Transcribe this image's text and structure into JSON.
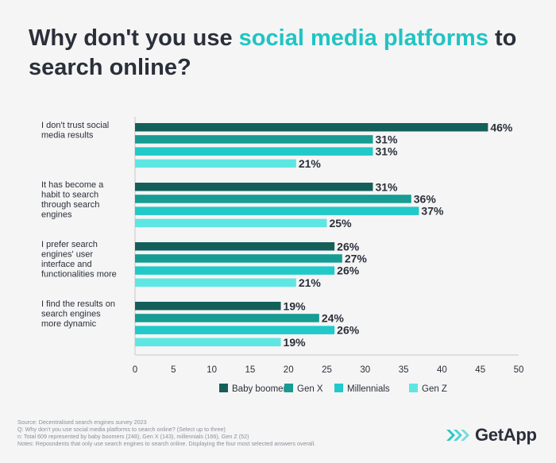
{
  "title": {
    "part1": "Why don't you use ",
    "highlight": "social media platforms",
    "part2": " to search online?"
  },
  "colors": {
    "title_highlight": "#20c4c4",
    "series": [
      "#145f5a",
      "#169c92",
      "#21c9c9",
      "#5ee6e3"
    ]
  },
  "chart_data": {
    "type": "bar",
    "orientation": "horizontal",
    "categories": [
      [
        "I don't trust social",
        "media results"
      ],
      [
        "It has become a",
        "habit to search",
        "through search",
        "engines"
      ],
      [
        "I prefer search",
        "engines' user",
        "interface and",
        "functionalities more"
      ],
      [
        "I find the results on",
        "search engines",
        "more dynamic"
      ]
    ],
    "series": [
      {
        "name": "Baby boomers",
        "values": [
          46,
          31,
          26,
          19
        ]
      },
      {
        "name": "Gen X",
        "values": [
          31,
          36,
          27,
          24
        ]
      },
      {
        "name": "Millennials",
        "values": [
          31,
          37,
          26,
          26
        ]
      },
      {
        "name": "Gen Z",
        "values": [
          21,
          25,
          21,
          19
        ]
      }
    ],
    "value_suffix": "%",
    "xlim": [
      0,
      50
    ],
    "xticks": [
      0,
      5,
      10,
      15,
      20,
      25,
      30,
      35,
      40,
      45,
      50
    ],
    "grid": false,
    "legend_position": "bottom"
  },
  "footnotes": [
    "Source: Decentralised search engines survey 2023",
    "Q: Why don't you use social media platforms to search online? (Select up to three)",
    "n: Total 609 represented by baby boomers (248), Gen X (143), millennials (166), Gen Z (52)",
    "Notes: Reposndents that only use search engines to search online. Displaying the four most selected answers overall."
  ],
  "logo": {
    "text": "GetApp",
    "icon": "getapp-chevrons-icon"
  }
}
